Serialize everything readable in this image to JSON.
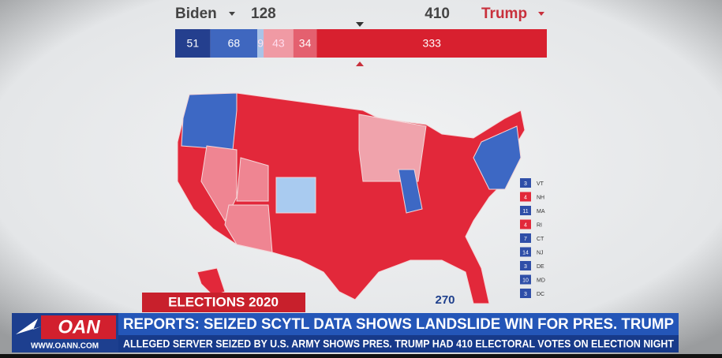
{
  "header": {
    "left": {
      "name": "Biden",
      "total": 128
    },
    "right": {
      "name": "Trump",
      "total": 410
    }
  },
  "bar": {
    "segments": [
      {
        "value": 51,
        "color": "#243f8e"
      },
      {
        "value": 68,
        "color": "#3f67bf"
      },
      {
        "value": 9,
        "color": "#a9c4e8"
      },
      {
        "value": 43,
        "color": "#f09aa4"
      },
      {
        "value": 34,
        "color": "#e4606f"
      },
      {
        "value": 333,
        "color": "#d8202f"
      }
    ]
  },
  "legend": [
    {
      "votes": 3,
      "state": "VT",
      "color": "#2f4fa8"
    },
    {
      "votes": 4,
      "state": "NH",
      "color": "#e2283a"
    },
    {
      "votes": 11,
      "state": "MA",
      "color": "#2f4fa8"
    },
    {
      "votes": 4,
      "state": "RI",
      "color": "#e2283a"
    },
    {
      "votes": 7,
      "state": "CT",
      "color": "#2f4fa8"
    },
    {
      "votes": 14,
      "state": "NJ",
      "color": "#2f4fa8"
    },
    {
      "votes": 3,
      "state": "DE",
      "color": "#2f4fa8"
    },
    {
      "votes": 10,
      "state": "MD",
      "color": "#2f4fa8"
    },
    {
      "votes": 3,
      "state": "DC",
      "color": "#2f4fa8"
    }
  ],
  "threshold": 270,
  "ticker": {
    "tag": "ELECTIONS 2020",
    "logo": "OAN",
    "url": "WWW.OANN.COM",
    "headline": "REPORTS: SEIZED SCYTL DATA SHOWS LANDSLIDE WIN FOR PRES. TRUMP",
    "subline": "ALLEGED SERVER SEIZED BY U.S. ARMY SHOWS PRES. TRUMP HAD 410 ELECTORAL VOTES ON ELECTION NIGHT"
  }
}
